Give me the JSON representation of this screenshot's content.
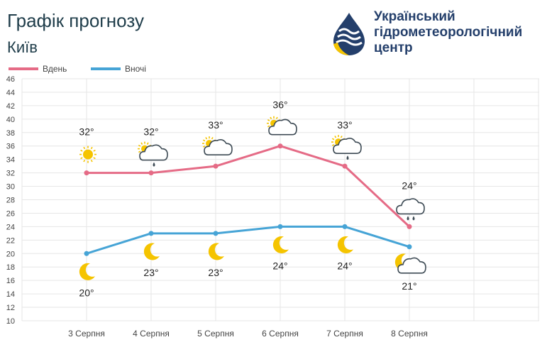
{
  "header": {
    "title": "Графік прогнозу",
    "city": "Київ",
    "org_line1": "Український",
    "org_line2": "гідрометеорологічний",
    "org_line3": "центр"
  },
  "colors": {
    "day": "#e56b86",
    "night": "#46a4d6",
    "grid": "#e6e6e6",
    "sun": "#f5c400",
    "cloud": "#3d4a54"
  },
  "chart_data": {
    "type": "line",
    "categories": [
      "3 Серпня",
      "4 Серпня",
      "5 Серпня",
      "6 Серпня",
      "7 Серпня",
      "8 Серпня"
    ],
    "ylim": [
      10,
      46
    ],
    "yticks": [
      10,
      12,
      14,
      16,
      18,
      20,
      22,
      24,
      26,
      28,
      30,
      32,
      34,
      36,
      38,
      40,
      42,
      44,
      46
    ],
    "grid": true,
    "legend_position": "top-left",
    "series": [
      {
        "name": "Вдень",
        "color": "#e56b86",
        "values": [
          32,
          32,
          33,
          36,
          33,
          24
        ],
        "labels": [
          "32°",
          "32°",
          "33°",
          "36°",
          "33°",
          "24°"
        ],
        "icons": [
          "sun-icon",
          "partly-cloudy-rain-icon",
          "partly-cloudy-icon",
          "partly-cloudy-icon",
          "partly-cloudy-rain-icon",
          "cloud-rain-icon"
        ]
      },
      {
        "name": "Вночі",
        "color": "#46a4d6",
        "values": [
          20,
          23,
          23,
          24,
          24,
          21
        ],
        "labels": [
          "20°",
          "23°",
          "23°",
          "24°",
          "24°",
          "21°"
        ],
        "icons": [
          "moon-icon",
          "moon-icon",
          "moon-icon",
          "moon-icon",
          "moon-icon",
          "moon-cloud-icon"
        ]
      }
    ]
  }
}
